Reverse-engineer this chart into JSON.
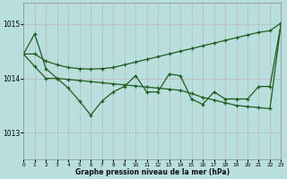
{
  "title": "Graphe pression niveau de la mer (hPa)",
  "bg": "#b8dede",
  "line_color": "#1e5c1e",
  "xlim": [
    0,
    23
  ],
  "ylim": [
    1012.5,
    1015.4
  ],
  "yticks": [
    1013,
    1014,
    1015
  ],
  "x": [
    0,
    1,
    2,
    3,
    4,
    5,
    6,
    7,
    8,
    9,
    10,
    11,
    12,
    13,
    14,
    15,
    16,
    17,
    18,
    19,
    20,
    21,
    22,
    23
  ],
  "curve_spiky": [
    1014.45,
    1014.82,
    1014.18,
    1014.0,
    1013.82,
    1013.58,
    1013.32,
    1013.58,
    1013.75,
    1013.85,
    1014.05,
    1013.75,
    1013.75,
    1014.08,
    1014.05,
    1013.62,
    1013.52,
    1013.75,
    1013.62,
    1013.62,
    1013.62,
    1013.85,
    1013.85,
    1015.02
  ],
  "curve_up": [
    1014.45,
    1014.45,
    1014.32,
    1014.25,
    1014.2,
    1014.18,
    1014.17,
    1014.18,
    1014.2,
    1014.25,
    1014.3,
    1014.35,
    1014.4,
    1014.45,
    1014.5,
    1014.55,
    1014.6,
    1014.65,
    1014.7,
    1014.75,
    1014.8,
    1014.85,
    1014.88,
    1015.02
  ],
  "curve_down": [
    1014.45,
    1014.22,
    1014.0,
    1014.0,
    1013.98,
    1013.96,
    1013.94,
    1013.92,
    1013.9,
    1013.88,
    1013.86,
    1013.84,
    1013.82,
    1013.8,
    1013.78,
    1013.72,
    1013.65,
    1013.6,
    1013.55,
    1013.5,
    1013.48,
    1013.46,
    1013.44,
    1015.02
  ]
}
